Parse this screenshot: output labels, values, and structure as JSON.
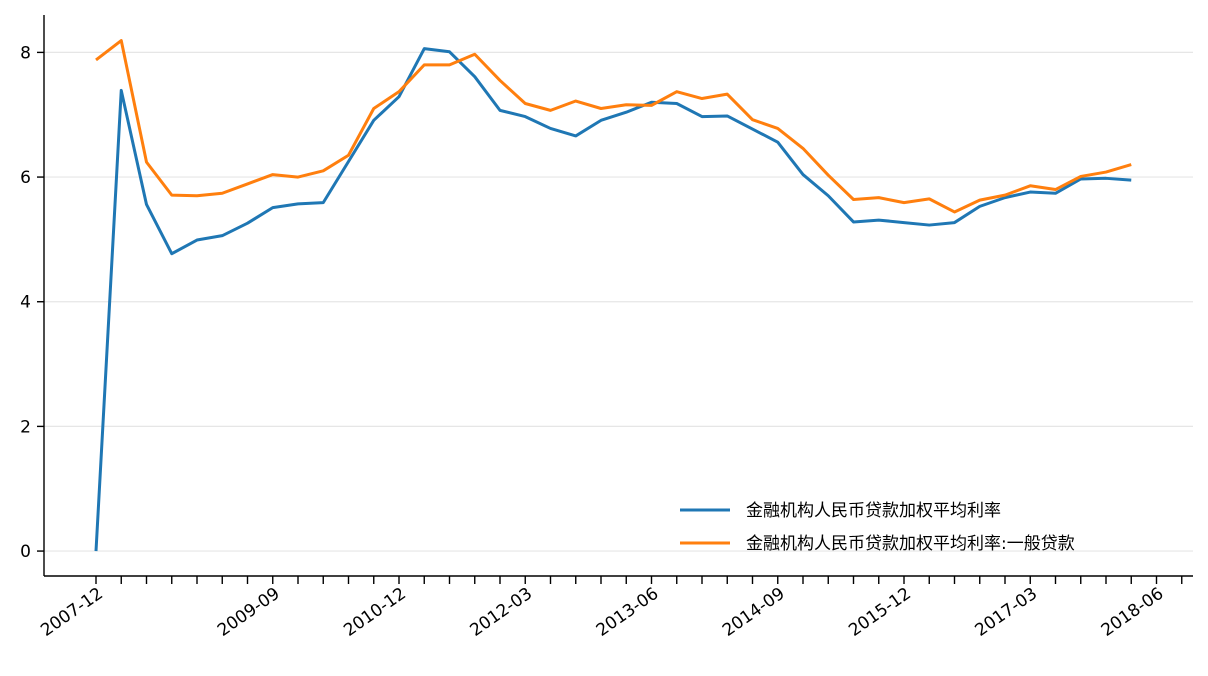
{
  "chart_data": {
    "type": "line",
    "title": "",
    "xlabel": "",
    "ylabel": "",
    "ylim": [
      -0.4,
      8.6
    ],
    "yticks": [
      0,
      2,
      4,
      6,
      8
    ],
    "grid": "horizontal",
    "legend_position": "lower-right",
    "x": [
      "2007-12",
      "2008-03",
      "2008-06",
      "2008-09",
      "2008-12",
      "2009-03",
      "2009-06",
      "2009-09",
      "2009-12",
      "2010-03",
      "2010-06",
      "2010-09",
      "2010-12",
      "2011-03",
      "2011-06",
      "2011-09",
      "2011-12",
      "2012-03",
      "2012-06",
      "2012-09",
      "2012-12",
      "2013-03",
      "2013-06",
      "2013-09",
      "2013-12",
      "2014-03",
      "2014-06",
      "2014-09",
      "2014-12",
      "2015-03",
      "2015-06",
      "2015-09",
      "2015-12",
      "2016-03",
      "2016-06",
      "2016-09",
      "2016-12",
      "2017-03",
      "2017-06",
      "2017-09",
      "2017-12",
      "2018-03",
      "2018-06",
      "2018-09"
    ],
    "tick_labels": [
      "2007-12",
      "2009-09",
      "2010-12",
      "2012-03",
      "2013-06",
      "2014-09",
      "2015-12",
      "2017-03",
      "2018-06"
    ],
    "series": [
      {
        "name": "金融机构人民币贷款加权平均利率",
        "color": "#1f77b4",
        "values": [
          0,
          7.39,
          5.56,
          4.77,
          4.99,
          5.06,
          5.26,
          5.51,
          5.57,
          5.59,
          6.25,
          6.91,
          7.29,
          8.06,
          8.01,
          7.61,
          7.07,
          6.97,
          6.78,
          6.66,
          6.91,
          7.04,
          7.2,
          7.18,
          6.97,
          6.98,
          6.77,
          6.56,
          6.04,
          5.7,
          5.28,
          5.31,
          5.27,
          5.23,
          5.27,
          5.53,
          5.67,
          5.76,
          5.74,
          5.97,
          5.98,
          5.95,
          null,
          null
        ]
      },
      {
        "name": "金融机构人民币贷款加权平均利率:一般贷款",
        "color": "#ff7f0e",
        "values": [
          7.88,
          8.19,
          6.24,
          5.71,
          5.7,
          5.74,
          5.89,
          6.04,
          6.0,
          6.1,
          6.35,
          7.1,
          7.37,
          7.8,
          7.8,
          7.97,
          7.55,
          7.18,
          7.07,
          7.22,
          7.1,
          7.16,
          7.15,
          7.37,
          7.26,
          7.33,
          6.92,
          6.78,
          6.46,
          6.03,
          5.64,
          5.67,
          5.59,
          5.65,
          5.44,
          5.63,
          5.71,
          5.86,
          5.8,
          6.01,
          6.08,
          6.2,
          null,
          null
        ]
      }
    ]
  }
}
